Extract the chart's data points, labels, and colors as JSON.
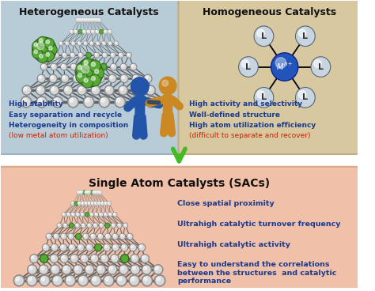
{
  "bg_color": "#ffffff",
  "top_left_box": {
    "title": "Heterogeneous Catalysts",
    "bg_color": "#b8ccd8",
    "border_color": "#9ab0c0",
    "text_lines": [
      {
        "text": "High stability",
        "color": "#1a3a8f"
      },
      {
        "text": "Easy separation and recycle",
        "color": "#1a3a8f"
      },
      {
        "text": "Heterogeneity in composition",
        "color": "#1a3a8f"
      },
      {
        "text": "(low metal atom utilization)",
        "color": "#cc2200"
      }
    ]
  },
  "top_right_box": {
    "title": "Homogeneous Catalysts",
    "bg_color": "#d8c8a0",
    "border_color": "#c0aa80",
    "text_lines": [
      {
        "text": "High activity and selectivity",
        "color": "#1a3a8f"
      },
      {
        "text": "Well-defined structure",
        "color": "#1a3a8f"
      },
      {
        "text": "High atom utilization efficiency",
        "color": "#1a3a8f"
      },
      {
        "text": "(difficult to separate and recover)",
        "color": "#cc2200"
      }
    ]
  },
  "bottom_box": {
    "title": "Single Atom Catalysts (SACs)",
    "bg_color": "#f0c0a8",
    "border_color": "#d8a888",
    "text_lines": [
      {
        "text": "Close spatial proximity",
        "color": "#1a3a8f"
      },
      {
        "text": "Ultrahigh catalytic turnover frequency",
        "color": "#1a3a8f"
      },
      {
        "text": "Ultrahigh catalytic activity",
        "color": "#1a3a8f"
      },
      {
        "text": "Easy to understand the correlations\nbetween the structures  and catalytic\nperformance",
        "color": "#1a3a8f"
      }
    ]
  },
  "arrow_color": "#44bb22",
  "metal_center_color": "#2255bb",
  "ligand_bg": "#c8d4e0",
  "ligand_edge": "#556677",
  "node_color": "#d8d8d8",
  "node_edge": "#888888",
  "active_color": "#55aa33",
  "active_edge": "#336622",
  "bond_color": "#555555",
  "figure_blue": "#2255aa",
  "figure_orange": "#cc8822"
}
